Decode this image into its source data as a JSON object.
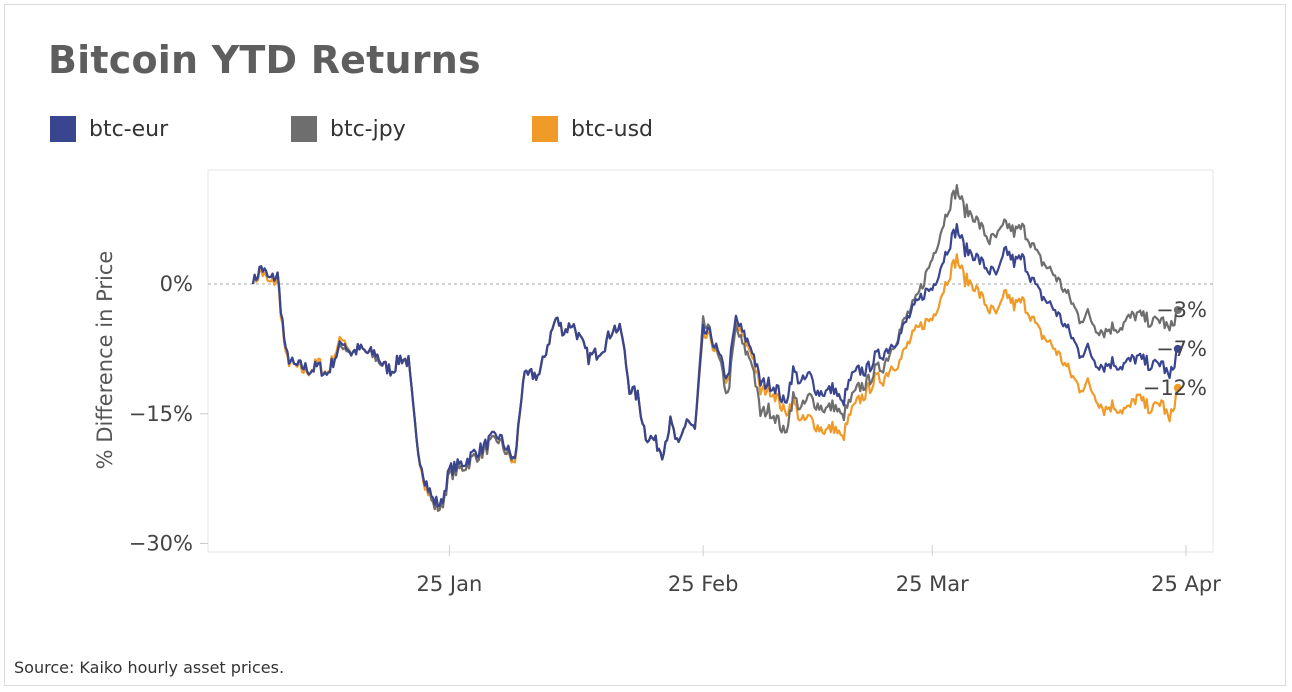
{
  "title": "Bitcoin YTD Returns",
  "source": "Source: Kaiko hourly asset prices.",
  "chart_data": {
    "type": "line",
    "title": "Bitcoin YTD Returns",
    "ylabel": "% Difference in Price",
    "xlabel": "",
    "x_start": "2022-01-01",
    "x_end": "2022-04-25",
    "ylim": [
      -30,
      12
    ],
    "yticks": [
      {
        "value": 0,
        "label": "0%"
      },
      {
        "value": -15,
        "label": "-15%"
      },
      {
        "value": -30,
        "label": "-30%"
      }
    ],
    "xticks": [
      {
        "date": "2022-01-25",
        "label": "25 Jan"
      },
      {
        "date": "2022-02-25",
        "label": "25 Feb"
      },
      {
        "date": "2022-03-25",
        "label": "25 Mar"
      },
      {
        "date": "2022-04-25",
        "label": "25 Apr"
      }
    ],
    "zero_line": true,
    "grid": false,
    "legend_position": "top-left",
    "x": [
      "2022-01-01",
      "2022-01-02",
      "2022-01-03",
      "2022-01-04",
      "2022-01-05",
      "2022-01-06",
      "2022-01-07",
      "2022-01-08",
      "2022-01-09",
      "2022-01-10",
      "2022-01-11",
      "2022-01-12",
      "2022-01-13",
      "2022-01-14",
      "2022-01-15",
      "2022-01-16",
      "2022-01-17",
      "2022-01-18",
      "2022-01-19",
      "2022-01-20",
      "2022-01-21",
      "2022-01-22",
      "2022-01-23",
      "2022-01-24",
      "2022-01-25",
      "2022-01-26",
      "2022-01-27",
      "2022-01-28",
      "2022-01-29",
      "2022-01-30",
      "2022-01-31",
      "2022-02-01",
      "2022-02-02",
      "2022-02-03",
      "2022-02-04",
      "2022-02-05",
      "2022-02-06",
      "2022-02-07",
      "2022-02-08",
      "2022-02-09",
      "2022-02-10",
      "2022-02-11",
      "2022-02-12",
      "2022-02-13",
      "2022-02-14",
      "2022-02-15",
      "2022-02-16",
      "2022-02-17",
      "2022-02-18",
      "2022-02-19",
      "2022-02-20",
      "2022-02-21",
      "2022-02-22",
      "2022-02-23",
      "2022-02-24",
      "2022-02-25",
      "2022-02-26",
      "2022-02-27",
      "2022-02-28",
      "2022-03-01",
      "2022-03-02",
      "2022-03-03",
      "2022-03-04",
      "2022-03-05",
      "2022-03-06",
      "2022-03-07",
      "2022-03-08",
      "2022-03-09",
      "2022-03-10",
      "2022-03-11",
      "2022-03-12",
      "2022-03-13",
      "2022-03-14",
      "2022-03-15",
      "2022-03-16",
      "2022-03-17",
      "2022-03-18",
      "2022-03-19",
      "2022-03-20",
      "2022-03-21",
      "2022-03-22",
      "2022-03-23",
      "2022-03-24",
      "2022-03-25",
      "2022-03-26",
      "2022-03-27",
      "2022-03-28",
      "2022-03-29",
      "2022-03-30",
      "2022-03-31",
      "2022-04-01",
      "2022-04-02",
      "2022-04-03",
      "2022-04-04",
      "2022-04-05",
      "2022-04-06",
      "2022-04-07",
      "2022-04-08",
      "2022-04-09",
      "2022-04-10",
      "2022-04-11",
      "2022-04-12",
      "2022-04-13",
      "2022-04-14",
      "2022-04-15",
      "2022-04-16",
      "2022-04-17",
      "2022-04-18",
      "2022-04-19",
      "2022-04-20",
      "2022-04-21",
      "2022-04-22",
      "2022-04-23",
      "2022-04-24"
    ],
    "series": [
      {
        "name": "btc-eur",
        "color": "#3a4590",
        "end_label": "-7%",
        "values": [
          0.0,
          2.0,
          0.5,
          1.0,
          -8.0,
          -9.5,
          -9.5,
          -10.0,
          -9.5,
          -10.5,
          -8.5,
          -6.5,
          -8.0,
          -7.5,
          -8.0,
          -8.0,
          -9.5,
          -10.0,
          -8.5,
          -9.0,
          -18.5,
          -22.5,
          -25.0,
          -25.5,
          -21.5,
          -21.0,
          -20.5,
          -19.5,
          -19.0,
          -18.0,
          -17.5,
          -19.0,
          -20.5,
          -11.0,
          -10.5,
          -10.5,
          -7.0,
          -4.0,
          -5.5,
          -4.5,
          -6.5,
          -8.5,
          -8.0,
          -7.0,
          -5.0,
          -5.5,
          -12.0,
          -13.0,
          -17.5,
          -18.0,
          -19.5,
          -16.0,
          -19.0,
          -15.5,
          -17.0,
          -5.5,
          -6.0,
          -8.5,
          -11.0,
          -4.0,
          -6.0,
          -7.5,
          -11.5,
          -11.5,
          -12.0,
          -14.0,
          -10.0,
          -11.5,
          -10.5,
          -12.5,
          -12.5,
          -12.0,
          -14.0,
          -11.0,
          -10.0,
          -10.0,
          -8.5,
          -8.0,
          -7.0,
          -6.0,
          -4.0,
          -2.5,
          -1.0,
          -0.5,
          2.0,
          4.5,
          6.5,
          4.0,
          3.5,
          2.5,
          1.5,
          1.0,
          4.0,
          2.5,
          3.0,
          1.0,
          -1.0,
          -2.0,
          -3.0,
          -4.5,
          -6.0,
          -8.0,
          -7.5,
          -9.0,
          -9.5,
          -9.0,
          -9.5,
          -9.0,
          -8.5,
          -9.0,
          -9.5,
          -9.0,
          -11.0,
          -7.5
        ]
      },
      {
        "name": "btc-jpy",
        "color": "#6e6e6e",
        "end_label": "-3%",
        "values": [
          0.0,
          2.0,
          0.5,
          1.0,
          -8.0,
          -9.5,
          -9.5,
          -10.0,
          -9.5,
          -10.5,
          -8.5,
          -7.0,
          -8.0,
          -7.5,
          -8.0,
          -8.5,
          -9.5,
          -10.0,
          -8.5,
          -9.0,
          -18.5,
          -22.5,
          -25.5,
          -26.0,
          -22.0,
          -21.5,
          -21.0,
          -20.0,
          -19.5,
          -18.5,
          -18.0,
          -19.5,
          -20.5,
          -11.0,
          -10.5,
          -10.5,
          -7.0,
          -4.0,
          -5.5,
          -4.5,
          -6.5,
          -8.5,
          -8.0,
          -7.0,
          -5.0,
          -5.5,
          -12.0,
          -13.0,
          -17.5,
          -18.0,
          -19.5,
          -16.0,
          -19.0,
          -15.5,
          -17.0,
          -4.5,
          -6.0,
          -9.0,
          -13.0,
          -5.0,
          -7.5,
          -9.0,
          -15.0,
          -14.5,
          -15.5,
          -17.5,
          -13.0,
          -14.5,
          -13.0,
          -14.0,
          -14.5,
          -14.0,
          -15.5,
          -13.5,
          -12.0,
          -11.5,
          -10.0,
          -9.5,
          -7.5,
          -5.5,
          -3.5,
          -2.0,
          0.5,
          3.0,
          6.0,
          9.0,
          11.0,
          8.5,
          8.0,
          6.5,
          5.0,
          5.5,
          7.0,
          6.0,
          6.5,
          5.0,
          3.0,
          2.0,
          1.0,
          -0.5,
          -2.0,
          -4.0,
          -3.5,
          -5.0,
          -5.5,
          -5.0,
          -5.0,
          -4.0,
          -3.5,
          -4.0,
          -4.5,
          -4.0,
          -5.5,
          -3.0
        ]
      },
      {
        "name": "btc-usd",
        "color": "#f09a28",
        "end_label": "-12%",
        "values": [
          0.0,
          1.5,
          0.0,
          0.5,
          -8.5,
          -9.5,
          -10.0,
          -10.0,
          -9.0,
          -10.5,
          -8.0,
          -6.0,
          -8.0,
          -7.5,
          -8.0,
          -8.0,
          -9.5,
          -10.0,
          -8.5,
          -9.0,
          -18.5,
          -23.0,
          -25.5,
          -26.0,
          -22.0,
          -21.5,
          -21.0,
          -20.0,
          -19.5,
          -18.5,
          -18.0,
          -19.5,
          -21.0,
          -11.0,
          -10.5,
          -10.5,
          -7.0,
          -4.0,
          -5.5,
          -4.5,
          -6.5,
          -8.5,
          -8.0,
          -7.0,
          -5.0,
          -5.5,
          -12.0,
          -13.0,
          -17.5,
          -18.0,
          -19.5,
          -16.0,
          -19.0,
          -15.5,
          -17.0,
          -6.0,
          -6.5,
          -9.0,
          -11.5,
          -4.5,
          -6.5,
          -8.0,
          -12.5,
          -12.0,
          -13.0,
          -15.0,
          -13.5,
          -16.0,
          -15.5,
          -16.5,
          -17.0,
          -16.5,
          -18.0,
          -15.0,
          -13.5,
          -12.5,
          -11.0,
          -11.0,
          -9.5,
          -9.0,
          -7.0,
          -5.5,
          -4.5,
          -4.0,
          -1.5,
          1.0,
          3.0,
          0.5,
          0.0,
          -1.5,
          -3.0,
          -3.5,
          -1.0,
          -2.5,
          -2.0,
          -3.5,
          -5.5,
          -6.5,
          -7.5,
          -9.0,
          -10.5,
          -12.0,
          -11.5,
          -13.0,
          -14.5,
          -14.0,
          -14.5,
          -14.5,
          -13.0,
          -14.0,
          -14.5,
          -13.5,
          -16.0,
          -12.0
        ]
      }
    ]
  }
}
